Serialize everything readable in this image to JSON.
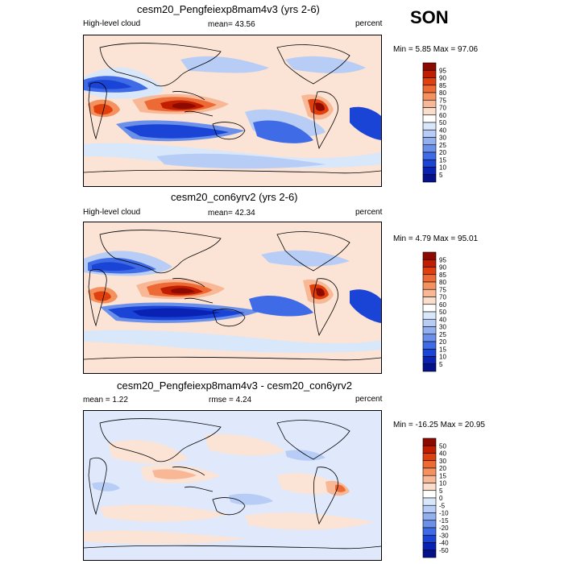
{
  "season": "SON",
  "panels": [
    {
      "title": "cesm20_Pengfeiexp8mam4v3 (yrs 2-6)",
      "left_label": "High-level cloud",
      "center_label": "mean=  43.56",
      "right_label": "percent",
      "minmax": "Min =   5.85 Max =  97.06",
      "colorbar": {
        "labels": [
          "95",
          "90",
          "85",
          "80",
          "75",
          "70",
          "60",
          "50",
          "40",
          "30",
          "25",
          "20",
          "15",
          "10",
          "5"
        ],
        "colors": [
          "#8c0a00",
          "#c11d00",
          "#e0400e",
          "#ee6a35",
          "#f4915f",
          "#f8b896",
          "#fbddcb",
          "#ffffff",
          "#d9e7fb",
          "#b7cdf6",
          "#92b0f0",
          "#6a90ea",
          "#3f6ce6",
          "#1a44d6",
          "#0a22b4",
          "#04118a"
        ]
      }
    },
    {
      "title": "cesm20_con6yrv2 (yrs 2-6)",
      "left_label": "High-level cloud",
      "center_label": "mean=  42.34",
      "right_label": "percent",
      "minmax": "Min =   4.79 Max =  95.01",
      "colorbar": {
        "labels": [
          "95",
          "90",
          "85",
          "80",
          "75",
          "70",
          "60",
          "50",
          "40",
          "30",
          "25",
          "20",
          "15",
          "10",
          "5"
        ],
        "colors": [
          "#8c0a00",
          "#c11d00",
          "#e0400e",
          "#ee6a35",
          "#f4915f",
          "#f8b896",
          "#fbddcb",
          "#ffffff",
          "#d9e7fb",
          "#b7cdf6",
          "#92b0f0",
          "#6a90ea",
          "#3f6ce6",
          "#1a44d6",
          "#0a22b4",
          "#04118a"
        ]
      }
    },
    {
      "title": "cesm20_Pengfeiexp8mam4v3 - cesm20_con6yrv2",
      "left_label": "mean =   1.22",
      "center_label": "rmse =   4.24",
      "right_label": "percent",
      "minmax": "Min = -16.25 Max =  20.95",
      "colorbar": {
        "labels": [
          "50",
          "40",
          "30",
          "20",
          "15",
          "10",
          "5",
          "0",
          "-5",
          "-10",
          "-15",
          "-20",
          "-30",
          "-40",
          "-50"
        ],
        "colors": [
          "#8c0a00",
          "#c11d00",
          "#e0400e",
          "#ee6a35",
          "#f4915f",
          "#f8b896",
          "#fbddcb",
          "#ffffff",
          "#d9e7fb",
          "#b7cdf6",
          "#92b0f0",
          "#6a90ea",
          "#3f6ce6",
          "#1a44d6",
          "#0a22b4",
          "#04118a"
        ]
      }
    }
  ],
  "chart_data": [
    {
      "type": "heatmap",
      "title": "cesm20_Pengfeiexp8mam4v3 (yrs 2-6)",
      "field": "High-level cloud",
      "units": "percent",
      "mean": 43.56,
      "min": 5.85,
      "max": 97.06,
      "contour_levels": [
        5,
        10,
        15,
        20,
        25,
        30,
        40,
        50,
        60,
        70,
        75,
        80,
        85,
        90,
        95
      ]
    },
    {
      "type": "heatmap",
      "title": "cesm20_con6yrv2 (yrs 2-6)",
      "field": "High-level cloud",
      "units": "percent",
      "mean": 42.34,
      "min": 4.79,
      "max": 95.01,
      "contour_levels": [
        5,
        10,
        15,
        20,
        25,
        30,
        40,
        50,
        60,
        70,
        75,
        80,
        85,
        90,
        95
      ]
    },
    {
      "type": "heatmap",
      "title": "cesm20_Pengfeiexp8mam4v3 - cesm20_con6yrv2",
      "units": "percent",
      "mean": 1.22,
      "rmse": 4.24,
      "min": -16.25,
      "max": 20.95,
      "contour_levels": [
        -50,
        -40,
        -30,
        -20,
        -15,
        -10,
        -5,
        0,
        5,
        10,
        15,
        20,
        30,
        40,
        50
      ]
    }
  ]
}
